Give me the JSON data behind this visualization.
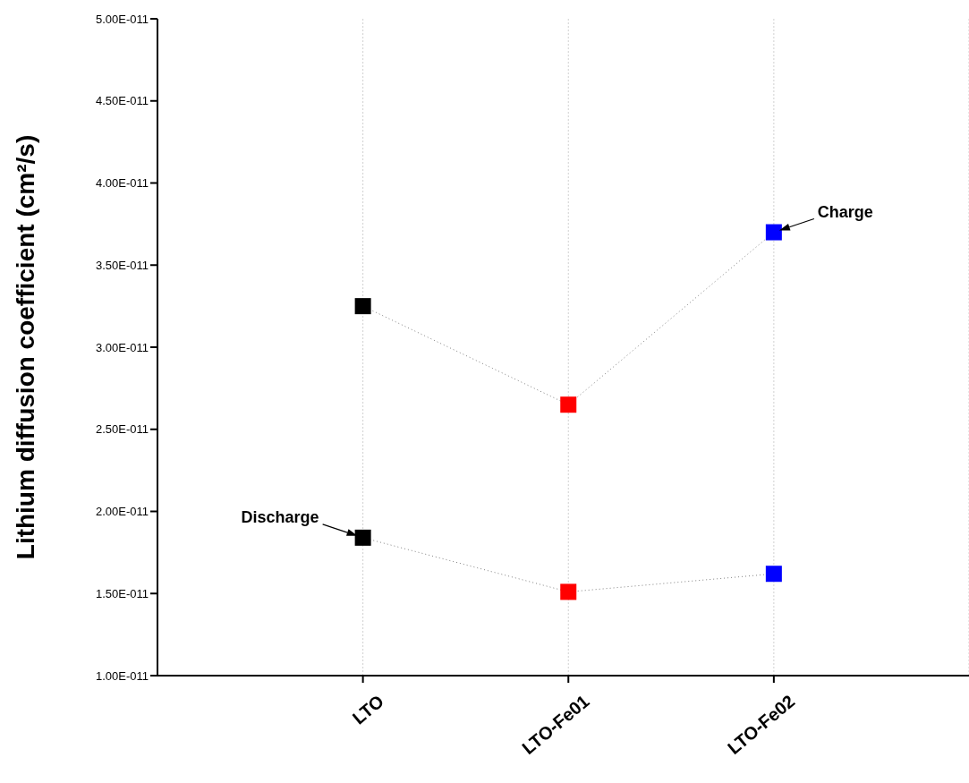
{
  "chart_data": {
    "type": "line",
    "ylabel": "Lithium diffusion coefficient (cm²/s)",
    "categories": [
      "LTO",
      "LTO-Fe01",
      "LTO-Fe02"
    ],
    "series": [
      {
        "color": "#808080",
        "colors": [
          "#000000",
          "#ff0000",
          "#0000ff"
        ],
        "values": [
          3.25e-11,
          2.65e-11,
          3.7e-11
        ]
      },
      {
        "color": "#808080",
        "colors": [
          "#000000",
          "#ff0000",
          "#0000ff"
        ],
        "values": [
          1.84e-11,
          1.51e-11,
          1.62e-11
        ]
      }
    ],
    "ylim": [
      1e-11,
      5e-11
    ],
    "yticks": [
      {
        "value": 1e-11,
        "label": "1.00E-011"
      },
      {
        "value": 1.5e-11,
        "label": "1.50E-011"
      },
      {
        "value": 2e-11,
        "label": "2.00E-011"
      },
      {
        "value": 2.5e-11,
        "label": "2.50E-011"
      },
      {
        "value": 3e-11,
        "label": "3.00E-011"
      },
      {
        "value": 3.5e-11,
        "label": "3.50E-011"
      },
      {
        "value": 4e-11,
        "label": "4.00E-011"
      },
      {
        "value": 4.5e-11,
        "label": "4.50E-011"
      },
      {
        "value": 5e-11,
        "label": "5.00E-011"
      }
    ],
    "annotations": [
      {
        "text": "Charge",
        "x": "LTO-Fe02",
        "y": 3.7e-11
      },
      {
        "text": "Discharge",
        "x": "LTO",
        "y": 1.84e-11
      }
    ],
    "grid": "x",
    "marker": "square",
    "line_style": "dotted"
  }
}
